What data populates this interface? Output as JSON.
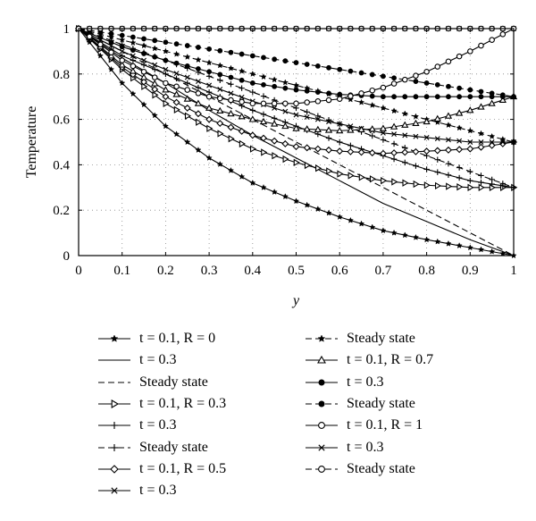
{
  "chart_data": {
    "type": "line",
    "title": "",
    "xlabel": "y",
    "ylabel": "Temperature",
    "xlim": [
      0,
      1
    ],
    "ylim": [
      0,
      1
    ],
    "xticks": [
      "0",
      "0.1",
      "0.2",
      "0.3",
      "0.4",
      "0.5",
      "0.6",
      "0.7",
      "0.8",
      "0.9",
      "1"
    ],
    "yticks": [
      "0",
      "0.2",
      "0.4",
      "0.6",
      "0.8",
      "1"
    ],
    "grid": true,
    "legend_position": "bottom",
    "x": [
      0,
      0.1,
      0.2,
      0.3,
      0.4,
      0.5,
      0.6,
      0.7,
      0.8,
      0.9,
      1.0
    ],
    "series": [
      {
        "name": "t = 0.1, R = 0",
        "marker": "star",
        "line": "solid",
        "values": [
          1.0,
          0.76,
          0.57,
          0.43,
          0.32,
          0.24,
          0.17,
          0.11,
          0.07,
          0.035,
          0.0
        ]
      },
      {
        "name": "t = 0.3",
        "marker": "none",
        "line": "solid",
        "values": [
          1.0,
          0.87,
          0.76,
          0.64,
          0.53,
          0.43,
          0.33,
          0.23,
          0.15,
          0.07,
          0.0
        ]
      },
      {
        "name": "Steady state",
        "marker": "none",
        "line": "dashed",
        "values": [
          1.0,
          0.9,
          0.8,
          0.7,
          0.6,
          0.5,
          0.4,
          0.3,
          0.2,
          0.1,
          0.0
        ]
      },
      {
        "name": "t = 0.1, R = 0.3",
        "marker": "triangle-right",
        "line": "solid",
        "values": [
          1.0,
          0.82,
          0.67,
          0.56,
          0.47,
          0.41,
          0.36,
          0.33,
          0.31,
          0.3,
          0.3
        ]
      },
      {
        "name": "t = 0.3",
        "marker": "plus",
        "line": "solid",
        "values": [
          1.0,
          0.88,
          0.8,
          0.72,
          0.64,
          0.57,
          0.5,
          0.44,
          0.38,
          0.33,
          0.3
        ]
      },
      {
        "name": "Steady state",
        "marker": "plus",
        "line": "dashed",
        "values": [
          1.0,
          0.93,
          0.86,
          0.79,
          0.72,
          0.65,
          0.58,
          0.51,
          0.44,
          0.37,
          0.3
        ]
      },
      {
        "name": "t = 0.1, R = 0.5",
        "marker": "diamond",
        "line": "solid",
        "values": [
          1.0,
          0.83,
          0.7,
          0.6,
          0.53,
          0.48,
          0.46,
          0.45,
          0.46,
          0.47,
          0.5
        ]
      },
      {
        "name": "t = 0.3",
        "marker": "x",
        "line": "solid",
        "values": [
          1.0,
          0.9,
          0.82,
          0.75,
          0.68,
          0.62,
          0.58,
          0.54,
          0.52,
          0.5,
          0.5
        ]
      },
      {
        "name": "Steady state",
        "marker": "star",
        "line": "dashed",
        "values": [
          1.0,
          0.95,
          0.9,
          0.85,
          0.8,
          0.75,
          0.7,
          0.65,
          0.6,
          0.55,
          0.5
        ]
      },
      {
        "name": "t = 0.1, R = 0.7",
        "marker": "triangle-up",
        "line": "solid",
        "values": [
          1.0,
          0.84,
          0.73,
          0.65,
          0.6,
          0.56,
          0.55,
          0.56,
          0.59,
          0.64,
          0.7
        ]
      },
      {
        "name": "t = 0.3",
        "marker": "dot",
        "line": "solid",
        "values": [
          1.0,
          0.92,
          0.86,
          0.81,
          0.76,
          0.73,
          0.71,
          0.7,
          0.7,
          0.7,
          0.7
        ]
      },
      {
        "name": "Steady state",
        "marker": "dot",
        "line": "dashed",
        "values": [
          1.0,
          0.97,
          0.94,
          0.91,
          0.88,
          0.85,
          0.82,
          0.79,
          0.76,
          0.73,
          0.7
        ]
      },
      {
        "name": "t = 0.1, R = 1",
        "marker": "circle",
        "line": "solid",
        "values": [
          1.0,
          0.86,
          0.76,
          0.7,
          0.67,
          0.67,
          0.69,
          0.74,
          0.81,
          0.9,
          1.0
        ]
      },
      {
        "name": "t = 0.3",
        "marker": "x",
        "line": "solid",
        "values": [
          1.0,
          1.0,
          1.0,
          1.0,
          1.0,
          1.0,
          1.0,
          1.0,
          1.0,
          1.0,
          1.0
        ]
      },
      {
        "name": "Steady state",
        "marker": "circle",
        "line": "dashed",
        "values": [
          1.0,
          1.0,
          1.0,
          1.0,
          1.0,
          1.0,
          1.0,
          1.0,
          1.0,
          1.0,
          1.0
        ]
      }
    ]
  }
}
